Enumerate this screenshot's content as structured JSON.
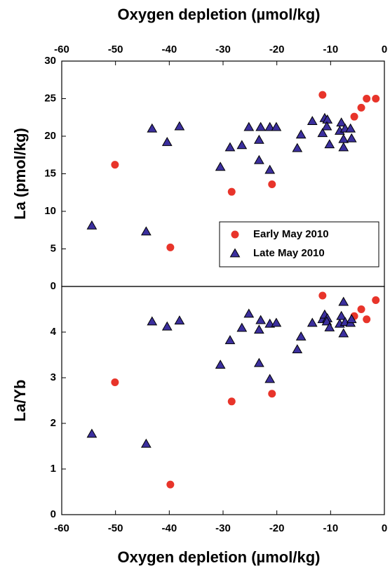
{
  "chart_data": [
    {
      "type": "scatter",
      "xlabel": "Oxygen depletion (µmol/kg)",
      "ylabel": "La (pmol/kg)",
      "xaxis_position": "top",
      "xlim": [
        -60,
        0
      ],
      "xticks": [
        -60,
        -50,
        -40,
        -30,
        -20,
        -10,
        0
      ],
      "ylim": [
        0,
        30
      ],
      "yticks": [
        0,
        5,
        10,
        15,
        20,
        25,
        30
      ],
      "legend": "lower right",
      "series": [
        {
          "name": "Early May 2010",
          "color": "#e8342a",
          "marker": "circle",
          "x": [
            -50.1,
            -39.8,
            -28.4,
            -20.9,
            -11.5,
            -5.6,
            -4.3,
            -3.3,
            -1.6
          ],
          "values": [
            16.2,
            5.2,
            12.6,
            13.6,
            25.5,
            22.6,
            23.8,
            25.0,
            25.0
          ]
        },
        {
          "name": "Late May 2010",
          "color": "#3b2f9e",
          "marker": "triangle",
          "x": [
            -54.4,
            -44.3,
            -43.2,
            -40.4,
            -38.1,
            -30.5,
            -28.7,
            -26.5,
            -25.2,
            -23.3,
            -23.3,
            -23.0,
            -21.3,
            -21.3,
            -20.1,
            -16.2,
            -15.5,
            -13.4,
            -11.5,
            -11.1,
            -10.6,
            -10.7,
            -10.2,
            -8.3,
            -8.0,
            -7.6,
            -7.3,
            -7.6,
            -6.3,
            -6.1
          ],
          "values": [
            8.1,
            7.3,
            21.0,
            19.2,
            21.3,
            15.9,
            18.5,
            18.8,
            21.2,
            19.5,
            16.8,
            21.2,
            15.5,
            21.2,
            21.2,
            18.4,
            20.2,
            22.0,
            20.4,
            22.4,
            22.2,
            21.3,
            18.9,
            20.7,
            21.8,
            19.6,
            21.0,
            18.5,
            21.0,
            19.7
          ]
        }
      ]
    },
    {
      "type": "scatter",
      "xlabel": "Oxygen depletion (µmol/kg)",
      "ylabel": "La/Yb",
      "xaxis_position": "bottom",
      "xlim": [
        -60,
        0
      ],
      "xticks": [
        -60,
        -50,
        -40,
        -30,
        -20,
        -10,
        0
      ],
      "ylim": [
        0,
        5
      ],
      "yticks": [
        0,
        1,
        2,
        3,
        4
      ],
      "series": [
        {
          "color": "#e8342a",
          "marker": "circle",
          "x": [
            -50.1,
            -39.8,
            -28.4,
            -20.9,
            -11.5,
            -5.6,
            -4.3,
            -3.3,
            -1.6
          ],
          "values": [
            2.9,
            0.66,
            2.48,
            2.65,
            4.8,
            4.35,
            4.5,
            4.28,
            4.7
          ]
        },
        {
          "color": "#3b2f9e",
          "marker": "triangle",
          "x": [
            -54.4,
            -44.3,
            -43.2,
            -40.4,
            -38.1,
            -30.5,
            -28.7,
            -26.5,
            -25.2,
            -23.3,
            -23.3,
            -23.0,
            -21.3,
            -21.3,
            -20.1,
            -16.2,
            -15.5,
            -13.4,
            -11.5,
            -11.1,
            -10.6,
            -10.7,
            -10.2,
            -8.3,
            -8.0,
            -7.6,
            -7.3,
            -7.6,
            -6.3,
            -6.1
          ],
          "values": [
            1.77,
            1.55,
            4.23,
            4.12,
            4.25,
            3.28,
            3.82,
            4.09,
            4.4,
            4.05,
            3.32,
            4.26,
            2.97,
            4.18,
            4.2,
            3.62,
            3.9,
            4.2,
            4.28,
            4.38,
            4.3,
            4.23,
            4.1,
            4.18,
            4.35,
            4.66,
            4.22,
            3.97,
            4.2,
            4.28
          ]
        }
      ]
    }
  ]
}
